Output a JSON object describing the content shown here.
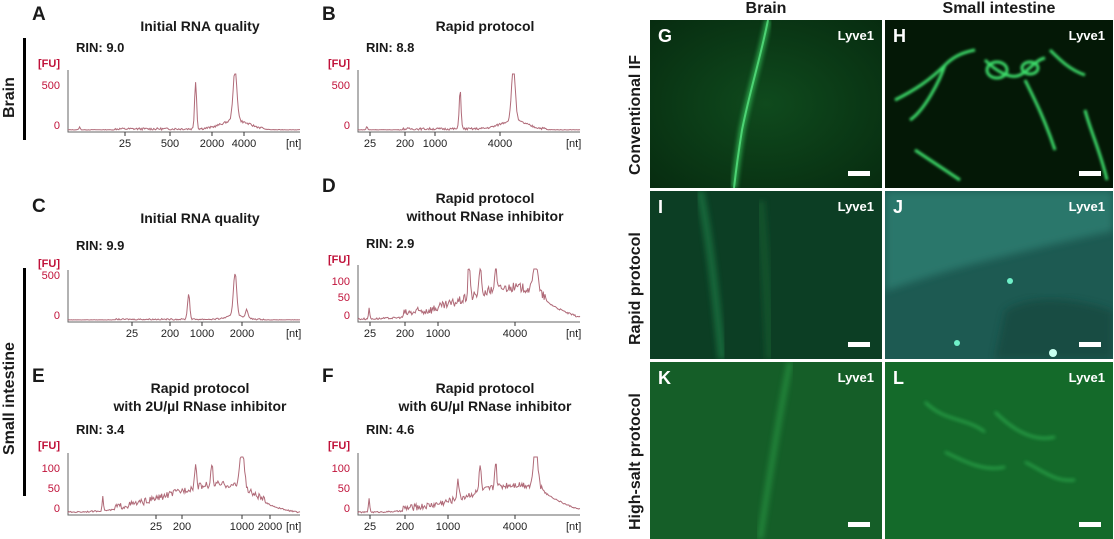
{
  "row_labels": {
    "brain": "Brain",
    "small_intestine": "Small intestine"
  },
  "column_headers": {
    "brain": "Brain",
    "small_intestine": "Small intestine"
  },
  "image_row_labels": [
    "Conventional IF",
    "Rapid protocol",
    "High-salt protocol"
  ],
  "marker": "Lyve1",
  "y_unit": "[FU]",
  "x_unit": "[nt]",
  "panels": [
    {
      "letter": "A",
      "title_lines": [
        "Initial RNA quality"
      ],
      "rin": "RIN: 9.0",
      "y_ticks": [
        0,
        500
      ],
      "x_ticks": [
        "25",
        "500",
        "2000",
        "4000"
      ]
    },
    {
      "letter": "B",
      "title_lines": [
        "Rapid protocol"
      ],
      "rin": "RIN: 8.8",
      "y_ticks": [
        0,
        500
      ],
      "x_ticks": [
        "25",
        "200",
        "1000",
        "4000"
      ]
    },
    {
      "letter": "C",
      "title_lines": [
        "Initial RNA quality"
      ],
      "rin": "RIN: 9.9",
      "y_ticks": [
        0,
        500
      ],
      "x_ticks": [
        "25",
        "200",
        "1000",
        "2000"
      ]
    },
    {
      "letter": "D",
      "title_lines": [
        "Rapid protocol",
        "without RNase inhibitor"
      ],
      "rin": "RIN: 2.9",
      "y_ticks": [
        0,
        50,
        100
      ],
      "x_ticks": [
        "25",
        "200",
        "1000",
        "4000"
      ]
    },
    {
      "letter": "E",
      "title_lines": [
        "Rapid protocol",
        "with 2U/µl RNase inhibitor"
      ],
      "rin": "RIN: 3.4",
      "y_ticks": [
        0,
        50,
        100
      ],
      "x_ticks": [
        "25",
        "200",
        "1000",
        "2000"
      ]
    },
    {
      "letter": "F",
      "title_lines": [
        "Rapid protocol",
        "with 6U/µl RNase inhibitor"
      ],
      "rin": "RIN: 4.6",
      "y_ticks": [
        0,
        50,
        100
      ],
      "x_ticks": [
        "25",
        "200",
        "1000",
        "4000"
      ]
    }
  ],
  "images": [
    {
      "letter": "G",
      "tissue": "Brain",
      "protocol": "Conventional IF"
    },
    {
      "letter": "H",
      "tissue": "Small intestine",
      "protocol": "Conventional IF"
    },
    {
      "letter": "I",
      "tissue": "Brain",
      "protocol": "Rapid protocol"
    },
    {
      "letter": "J",
      "tissue": "Small intestine",
      "protocol": "Rapid protocol"
    },
    {
      "letter": "K",
      "tissue": "Brain",
      "protocol": "High-salt protocol"
    },
    {
      "letter": "L",
      "tissue": "Small intestine",
      "protocol": "High-salt protocol"
    }
  ],
  "colors": {
    "trace": "#b06a78",
    "axis_label": "#c0123a",
    "fluor_bg": "#0a3a16",
    "fluor_signal": "#3ddc6a"
  }
}
